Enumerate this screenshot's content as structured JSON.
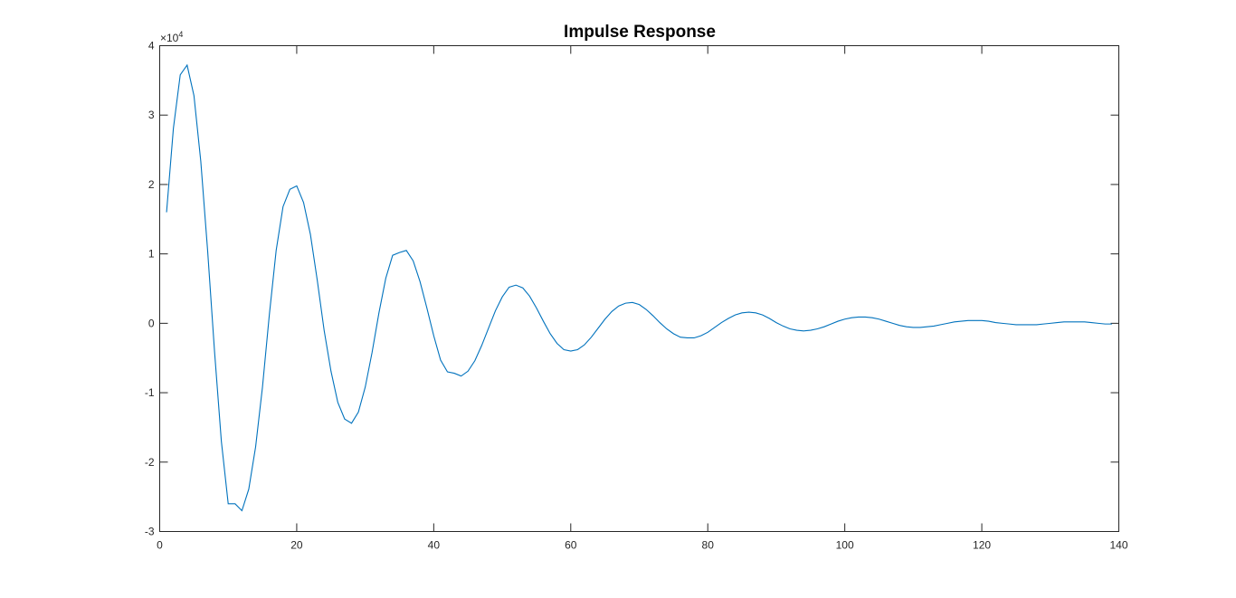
{
  "chart_data": {
    "type": "line",
    "title": "Impulse Response",
    "xlabel": "",
    "ylabel": "",
    "xlim": [
      0,
      140
    ],
    "ylim": [
      -3,
      4
    ],
    "y_exponent_label": {
      "base": "×10",
      "exponent": "4"
    },
    "grid": false,
    "xticks": [
      0,
      20,
      40,
      60,
      80,
      100,
      120,
      140
    ],
    "yticks": [
      -3,
      -2,
      -1,
      0,
      1,
      2,
      3,
      4
    ],
    "xtick_labels": [
      "0",
      "20",
      "40",
      "60",
      "80",
      "100",
      "120",
      "140"
    ],
    "ytick_labels": [
      "-3",
      "-2",
      "-1",
      "0",
      "1",
      "2",
      "3",
      "4"
    ],
    "series": [
      {
        "color": "#0072BD",
        "x": [
          1,
          2,
          3,
          4,
          5,
          6,
          7,
          8,
          9,
          10,
          11,
          12,
          13,
          14,
          15,
          16,
          17,
          18,
          19,
          20,
          21,
          22,
          23,
          24,
          25,
          26,
          27,
          28,
          29,
          30,
          31,
          32,
          33,
          34,
          35,
          36,
          37,
          38,
          39,
          40,
          41,
          42,
          43,
          44,
          45,
          46,
          47,
          48,
          49,
          50,
          51,
          52,
          53,
          54,
          55,
          56,
          57,
          58,
          59,
          60,
          61,
          62,
          63,
          64,
          65,
          66,
          67,
          68,
          69,
          70,
          71,
          72,
          73,
          74,
          75,
          76,
          77,
          78,
          79,
          80,
          81,
          82,
          83,
          84,
          85,
          86,
          87,
          88,
          89,
          90,
          91,
          92,
          93,
          94,
          95,
          96,
          97,
          98,
          99,
          100,
          101,
          102,
          103,
          104,
          105,
          106,
          107,
          108,
          109,
          110,
          111,
          112,
          113,
          114,
          115,
          116,
          117,
          118,
          119,
          120,
          121,
          122,
          123,
          124,
          125,
          126,
          127,
          128,
          129,
          130,
          131,
          132,
          133,
          134,
          135,
          136,
          137,
          138,
          139
        ],
        "y": [
          1.6,
          2.81,
          3.58,
          3.72,
          3.28,
          2.33,
          1.04,
          -0.4,
          -1.7,
          -2.6,
          -2.6,
          -2.7,
          -2.39,
          -1.78,
          -0.92,
          0.12,
          1.05,
          1.68,
          1.93,
          1.98,
          1.74,
          1.28,
          0.62,
          -0.1,
          -0.69,
          -1.14,
          -1.38,
          -1.44,
          -1.28,
          -0.92,
          -0.42,
          0.15,
          0.65,
          0.98,
          1.02,
          1.05,
          0.9,
          0.6,
          0.22,
          -0.18,
          -0.53,
          -0.7,
          -0.72,
          -0.76,
          -0.69,
          -0.54,
          -0.32,
          -0.07,
          0.18,
          0.38,
          0.52,
          0.55,
          0.51,
          0.39,
          0.22,
          0.03,
          -0.15,
          -0.29,
          -0.38,
          -0.4,
          -0.38,
          -0.31,
          -0.2,
          -0.07,
          0.06,
          0.17,
          0.25,
          0.29,
          0.3,
          0.27,
          0.2,
          0.11,
          0.01,
          -0.08,
          -0.15,
          -0.2,
          -0.21,
          -0.21,
          -0.18,
          -0.13,
          -0.06,
          0.01,
          0.07,
          0.12,
          0.15,
          0.16,
          0.15,
          0.12,
          0.07,
          0.01,
          -0.04,
          -0.08,
          -0.1,
          -0.11,
          -0.1,
          -0.08,
          -0.05,
          -0.01,
          0.03,
          0.06,
          0.08,
          0.09,
          0.09,
          0.08,
          0.06,
          0.03,
          0,
          -0.03,
          -0.05,
          -0.06,
          -0.06,
          -0.05,
          -0.04,
          -0.02,
          0,
          0.02,
          0.03,
          0.04,
          0.04,
          0.04,
          0.03,
          0.01,
          0,
          -0.01,
          -0.02,
          -0.02,
          -0.02,
          -0.02,
          -0.01,
          0,
          0.01,
          0.02,
          0.02,
          0.02,
          0.02,
          0.01,
          0,
          -0.01,
          -0.01
        ]
      }
    ]
  }
}
